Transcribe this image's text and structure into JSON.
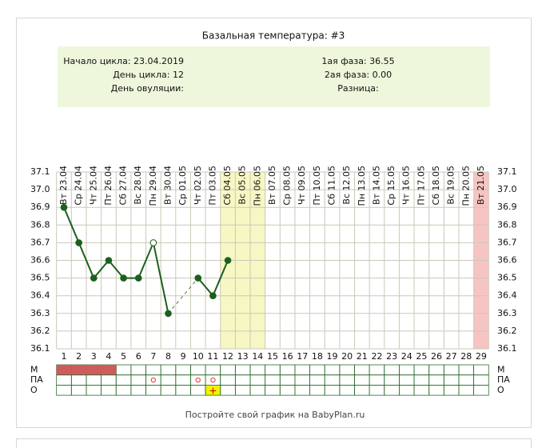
{
  "chart_data": {
    "type": "line",
    "title": "Базальная температура: #3",
    "info_left": [
      "Начало цикла: 23.04.2019",
      "День цикла: 12",
      "День овуляции:"
    ],
    "info_right": [
      "1ая фаза: 36.55",
      "2ая фаза: 0.00",
      "Разница:"
    ],
    "categories": [
      "Вт 23.04",
      "Ср 24.04",
      "Чт 25.04",
      "Пт 26.04",
      "Сб 27.04",
      "Вс 28.04",
      "Пн 29.04",
      "Вт 30.04",
      "Ср 01.05",
      "Чт 02.05",
      "Пт 03.05",
      "Сб 04.05",
      "Вс 05.05",
      "Пн 06.05",
      "Вт 07.05",
      "Ср 08.05",
      "Чт 09.05",
      "Пт 10.05",
      "Сб 11.05",
      "Вс 12.05",
      "Пн 13.05",
      "Вт 14.05",
      "Ср 15.05",
      "Чт 16.05",
      "Пт 17.05",
      "Сб 18.05",
      "Вс 19.05",
      "Пн 20.05",
      "Вт 21.05"
    ],
    "x": [
      1,
      2,
      3,
      4,
      5,
      6,
      7,
      8,
      9,
      10,
      11,
      12,
      13,
      14,
      15,
      16,
      17,
      18,
      19,
      20,
      21,
      22,
      23,
      24,
      25,
      26,
      27,
      28,
      29
    ],
    "series": [
      {
        "name": "Температура",
        "color": "#1d5f1d",
        "values": [
          36.9,
          36.7,
          36.5,
          36.6,
          36.5,
          36.5,
          36.7,
          36.3,
          null,
          36.5,
          36.4,
          36.6,
          null,
          null,
          null,
          null,
          null,
          null,
          null,
          null,
          null,
          null,
          null,
          null,
          null,
          null,
          null,
          null,
          null
        ]
      }
    ],
    "hollow_days": [
      7
    ],
    "ylim": [
      36.1,
      37.1
    ],
    "yticks": [
      36.1,
      36.2,
      36.3,
      36.4,
      36.5,
      36.6,
      36.7,
      36.8,
      36.9,
      {
        "value": 37,
        "label": "37.0"
      },
      37.1
    ],
    "highlight_days": [
      12,
      13,
      14
    ],
    "highlight_color": "#f7f7c4",
    "end_days": [
      29
    ],
    "end_color": "#f7c4c4",
    "rows": [
      {
        "label": "М",
        "days": [
          1,
          2,
          3,
          4
        ],
        "color": "#cd5c5c"
      },
      {
        "label": "ПА",
        "days": [
          7,
          10,
          11
        ],
        "color": "#e05050"
      },
      {
        "label": "О",
        "days": [
          11
        ],
        "symbol": "+",
        "color": "#f2f200"
      }
    ],
    "footer": "Постройте свой график на BabyPlan.ru"
  }
}
